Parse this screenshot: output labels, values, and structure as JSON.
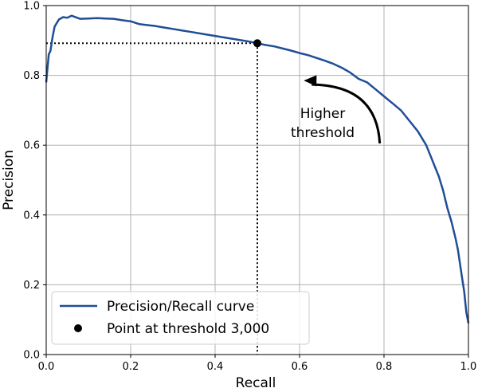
{
  "chart_data": {
    "type": "line",
    "xlabel": "Recall",
    "ylabel": "Precision",
    "xlim": [
      0,
      1
    ],
    "ylim": [
      0,
      1
    ],
    "grid": true,
    "x_ticks": [
      {
        "value": 0.0,
        "label": "0.0"
      },
      {
        "value": 0.2,
        "label": "0.2"
      },
      {
        "value": 0.4,
        "label": "0.4"
      },
      {
        "value": 0.6,
        "label": "0.6"
      },
      {
        "value": 0.8,
        "label": "0.8"
      },
      {
        "value": 1.0,
        "label": "1.0"
      }
    ],
    "y_ticks": [
      {
        "value": 0.0,
        "label": "0.0"
      },
      {
        "value": 0.2,
        "label": "0.2"
      },
      {
        "value": 0.4,
        "label": "0.4"
      },
      {
        "value": 0.6,
        "label": "0.6"
      },
      {
        "value": 0.8,
        "label": "0.8"
      },
      {
        "value": 1.0,
        "label": "1.0"
      }
    ],
    "series": [
      {
        "name": "Precision/Recall curve",
        "color": "#1f4e96",
        "x": [
          1.0,
          0.995,
          0.99,
          0.985,
          0.98,
          0.975,
          0.97,
          0.96,
          0.95,
          0.94,
          0.93,
          0.92,
          0.91,
          0.9,
          0.88,
          0.86,
          0.84,
          0.82,
          0.8,
          0.78,
          0.76,
          0.74,
          0.72,
          0.7,
          0.68,
          0.66,
          0.64,
          0.62,
          0.6,
          0.58,
          0.56,
          0.54,
          0.52,
          0.5,
          0.48,
          0.46,
          0.44,
          0.42,
          0.4,
          0.38,
          0.36,
          0.34,
          0.32,
          0.3,
          0.28,
          0.26,
          0.24,
          0.22,
          0.2,
          0.18,
          0.16,
          0.14,
          0.12,
          0.1,
          0.08,
          0.06,
          0.05,
          0.04,
          0.03,
          0.02,
          0.015,
          0.01,
          0.006,
          0.003,
          0.0
        ],
        "y": [
          0.09,
          0.12,
          0.18,
          0.22,
          0.26,
          0.3,
          0.33,
          0.38,
          0.42,
          0.47,
          0.51,
          0.54,
          0.57,
          0.6,
          0.64,
          0.67,
          0.7,
          0.72,
          0.74,
          0.76,
          0.78,
          0.79,
          0.808,
          0.822,
          0.833,
          0.842,
          0.85,
          0.858,
          0.864,
          0.871,
          0.877,
          0.883,
          0.887,
          0.892,
          0.897,
          0.901,
          0.905,
          0.909,
          0.913,
          0.917,
          0.921,
          0.925,
          0.929,
          0.933,
          0.937,
          0.941,
          0.944,
          0.947,
          0.955,
          0.958,
          0.962,
          0.963,
          0.964,
          0.963,
          0.962,
          0.971,
          0.965,
          0.967,
          0.96,
          0.94,
          0.91,
          0.87,
          0.86,
          0.82,
          0.78
        ]
      }
    ],
    "points": [
      {
        "name": "Point at threshold 3,000",
        "x": 0.5,
        "y": 0.892,
        "color": "#000000"
      }
    ],
    "annotation": {
      "lines": [
        "Higher",
        "threshold"
      ],
      "arrow_from": [
        0.79,
        0.605
      ],
      "arrow_to": [
        0.61,
        0.785
      ]
    },
    "legend": {
      "position": "lower-left",
      "entries": [
        {
          "label": "Precision/Recall curve",
          "kind": "line",
          "color": "#1f4e96"
        },
        {
          "label": "Point at threshold 3,000",
          "kind": "marker",
          "color": "#000000"
        }
      ]
    }
  }
}
